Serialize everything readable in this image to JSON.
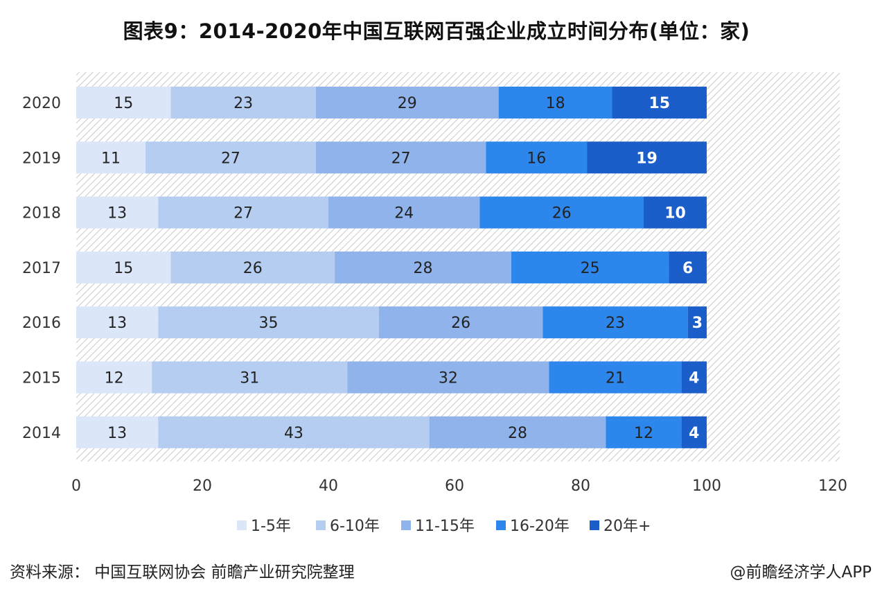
{
  "title": "图表9：2014-2020年中国互联网百强企业成立时间分布(单位：家)",
  "source": "资料来源：  中国互联网协会 前瞻产业研究院整理",
  "credit": "@前瞻经济学人APP",
  "colors": {
    "series": [
      "#dbe7f8",
      "#b4cdf1",
      "#8fb3ea",
      "#2c86ec",
      "#1b5ec9"
    ],
    "hatch": "#c9c9c9",
    "label_dark": "#222222",
    "label_light": "#ffffff",
    "axis_text": "#333333"
  },
  "chart_data": {
    "type": "bar",
    "orientation": "horizontal",
    "stacked": true,
    "title": "图表9：2014-2020年中国互联网百强企业成立时间分布(单位：家)",
    "categories": [
      "2020",
      "2019",
      "2018",
      "2017",
      "2016",
      "2015",
      "2014"
    ],
    "series": [
      {
        "name": "1-5年",
        "values": [
          15,
          11,
          13,
          15,
          13,
          12,
          13
        ]
      },
      {
        "name": "6-10年",
        "values": [
          23,
          27,
          27,
          26,
          35,
          31,
          43
        ]
      },
      {
        "name": "11-15年",
        "values": [
          29,
          27,
          24,
          28,
          26,
          32,
          28
        ]
      },
      {
        "name": "16-20年",
        "values": [
          18,
          16,
          26,
          25,
          23,
          21,
          12
        ]
      },
      {
        "name": "20年+",
        "values": [
          15,
          19,
          10,
          6,
          3,
          4,
          4
        ]
      }
    ],
    "x_ticks": [
      0,
      20,
      40,
      60,
      80,
      100,
      120
    ],
    "xlim": [
      0,
      120
    ],
    "grid": false,
    "legend_position": "bottom",
    "data_labels": true
  }
}
